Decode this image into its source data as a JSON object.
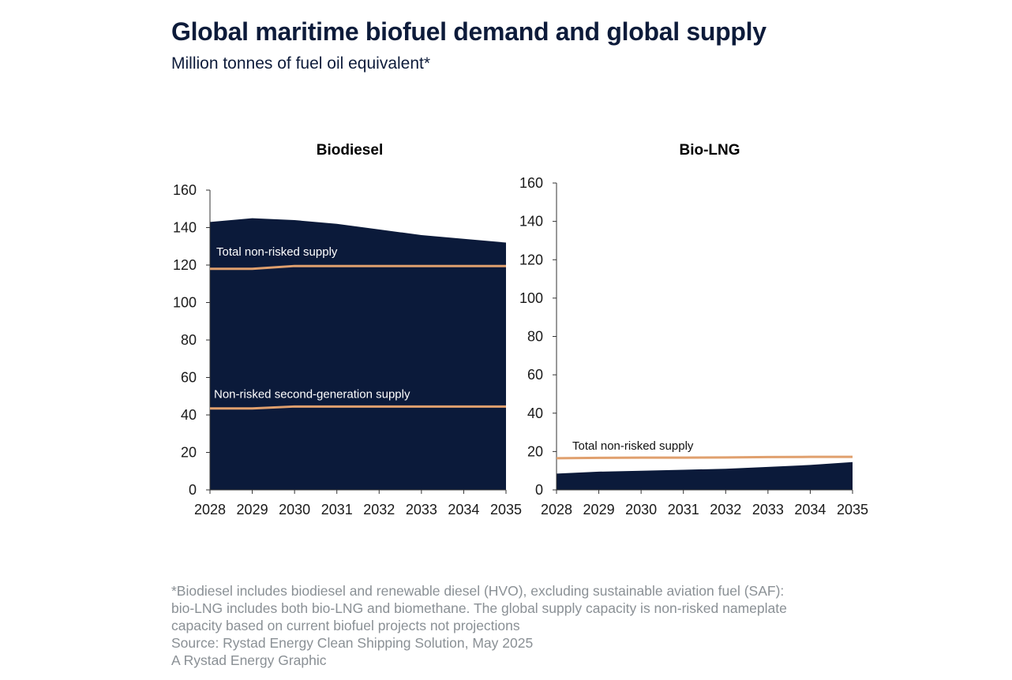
{
  "header": {
    "title": "Global maritime biofuel demand and global supply",
    "subtitle": "Million tonnes of fuel oil equivalent*"
  },
  "colors": {
    "demand_fill": "#0b1a3a",
    "supply_line": "#e0a06e",
    "text_dark": "#0d1b3a",
    "footnote": "#8a9095"
  },
  "chart_data": [
    {
      "type": "area",
      "title": "Biodiesel",
      "xlabel": "",
      "ylabel": "",
      "x": [
        "2028",
        "2029",
        "2030",
        "2031",
        "2032",
        "2033",
        "2034",
        "2035"
      ],
      "ylim": [
        0,
        160
      ],
      "yticks": [
        0,
        20,
        40,
        60,
        80,
        100,
        120,
        140,
        160
      ],
      "grid": false,
      "series": [
        {
          "kind": "area",
          "values": [
            143,
            145,
            144,
            142,
            139,
            136,
            134,
            132
          ]
        },
        {
          "name": "Total non-risked supply",
          "kind": "line",
          "values": [
            118,
            118,
            119.5,
            119.5,
            119.5,
            119.5,
            119.5,
            119.5
          ]
        },
        {
          "name": "Non-risked second-generation supply",
          "kind": "line",
          "values": [
            43.5,
            43.5,
            44.5,
            44.5,
            44.5,
            44.5,
            44.5,
            44.5
          ]
        }
      ]
    },
    {
      "type": "area",
      "title": "Bio-LNG",
      "xlabel": "",
      "ylabel": "",
      "x": [
        "2028",
        "2029",
        "2030",
        "2031",
        "2032",
        "2033",
        "2034",
        "2035"
      ],
      "ylim": [
        0,
        160
      ],
      "yticks": [
        0,
        20,
        40,
        60,
        80,
        100,
        120,
        140,
        160
      ],
      "grid": false,
      "series": [
        {
          "kind": "area",
          "values": [
            8.5,
            9.5,
            10,
            10.5,
            11,
            12,
            13,
            14.5
          ]
        },
        {
          "name": "Total non-risked supply",
          "kind": "line",
          "values": [
            16.5,
            16.7,
            16.8,
            16.8,
            16.9,
            17.1,
            17.2,
            17.2
          ]
        }
      ]
    }
  ],
  "footnote": {
    "lines": [
      "*Biodiesel includes biodiesel and renewable diesel (HVO), excluding sustainable aviation fuel (SAF):",
      "bio-LNG includes both bio-LNG and biomethane. The global supply capacity is non-risked nameplate",
      "capacity based on current biofuel projects not projections",
      "Source: Rystad Energy Clean Shipping Solution, May 2025",
      "A Rystad Energy Graphic"
    ]
  }
}
